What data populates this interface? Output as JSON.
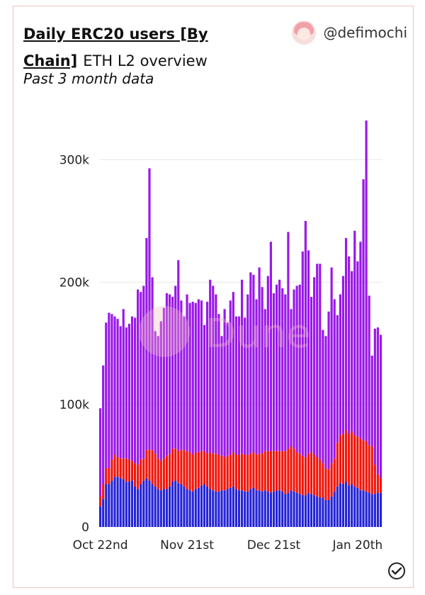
{
  "header": {
    "title": "Daily ERC20 users [By Chain]",
    "subtitle": "ETH L2 overview",
    "description": "Past 3 month data",
    "author": "@defimochi"
  },
  "colors": {
    "top": "#9a18e8",
    "middle": "#f2160a",
    "bottom": "#2424d6",
    "watermark": "#f3b6c0"
  },
  "watermark_text": "Dune",
  "chart_data": {
    "type": "bar",
    "stacked": true,
    "x_tick_labels": [
      "Oct 22nd",
      "Nov 21st",
      "Dec 21st",
      "Jan 20th"
    ],
    "y_tick_labels": [
      "0",
      "100k",
      "200k",
      "300k"
    ],
    "ylim": [
      0,
      335000
    ],
    "grid": true,
    "series": [
      {
        "values": [
          17000,
          23000,
          35000,
          35000,
          38000,
          41000,
          41000,
          40000,
          39000,
          37000,
          37000,
          38000,
          33000,
          31000,
          35000,
          38000,
          40000,
          38000,
          35000,
          33000,
          31000,
          30000,
          31000,
          31000,
          33000,
          37000,
          38000,
          36000,
          35000,
          33000,
          31000,
          30000,
          29000,
          31000,
          32000,
          34000,
          35000,
          33000,
          31000,
          30000,
          29000,
          29000,
          30000,
          30000,
          31000,
          32000,
          33000,
          31000,
          30000,
          30000,
          29000,
          29000,
          31000,
          32000,
          30000,
          30000,
          29000,
          30000,
          29000,
          28000,
          29000,
          30000,
          30000,
          29000,
          27000,
          28000,
          30000,
          29000,
          28000,
          27000,
          26000,
          26000,
          28000,
          27000,
          26000,
          25000,
          24000,
          24000,
          22000,
          22000,
          25000,
          29000,
          33000,
          36000,
          35000,
          37000,
          34000,
          35000,
          33000,
          32000,
          30000,
          30000,
          29000,
          28000,
          27000,
          27000,
          28000,
          28000
        ]
      },
      {
        "values": [
          8000,
          12000,
          13000,
          13000,
          17000,
          18000,
          16000,
          16000,
          17000,
          19000,
          18000,
          16000,
          19000,
          20000,
          20000,
          18000,
          23000,
          25000,
          28000,
          27000,
          25000,
          24000,
          25000,
          27000,
          27000,
          27000,
          26000,
          26000,
          28000,
          30000,
          31000,
          31000,
          30000,
          30000,
          29000,
          28000,
          27000,
          27000,
          30000,
          30000,
          31000,
          30000,
          28000,
          27000,
          27000,
          27000,
          28000,
          28000,
          29000,
          30000,
          30000,
          30000,
          29000,
          29000,
          29000,
          30000,
          31000,
          32000,
          33000,
          34000,
          33000,
          32000,
          32000,
          33000,
          35000,
          36000,
          36000,
          35000,
          33000,
          33000,
          32000,
          31000,
          32000,
          34000,
          33000,
          32000,
          31000,
          28000,
          26000,
          25000,
          27000,
          27000,
          36000,
          39000,
          41000,
          42000,
          42000,
          43000,
          42000,
          42000,
          42000,
          41000,
          41000,
          39000,
          39000,
          24000,
          15000,
          12000
        ]
      },
      {
        "values": [
          72000,
          97000,
          119000,
          127000,
          119000,
          113000,
          113000,
          108000,
          122000,
          107000,
          111000,
          118000,
          119000,
          143000,
          137000,
          141000,
          173000,
          230000,
          141000,
          100000,
          100000,
          114000,
          123000,
          133000,
          130000,
          124000,
          133000,
          156000,
          122000,
          109000,
          128000,
          122000,
          125000,
          122000,
          125000,
          123000,
          103000,
          124000,
          141000,
          137000,
          130000,
          115000,
          98000,
          121000,
          109000,
          126000,
          131000,
          113000,
          113000,
          142000,
          112000,
          131000,
          148000,
          145000,
          127000,
          152000,
          136000,
          116000,
          143000,
          171000,
          129000,
          136000,
          140000,
          133000,
          128000,
          177000,
          112000,
          130000,
          136000,
          138000,
          167000,
          193000,
          166000,
          127000,
          145000,
          158000,
          160000,
          109000,
          108000,
          129000,
          160000,
          130000,
          104000,
          115000,
          129000,
          157000,
          145000,
          131000,
          167000,
          143000,
          161000,
          213000,
          262000,
          122000,
          74000,
          111000,
          120000,
          117000
        ]
      }
    ]
  }
}
